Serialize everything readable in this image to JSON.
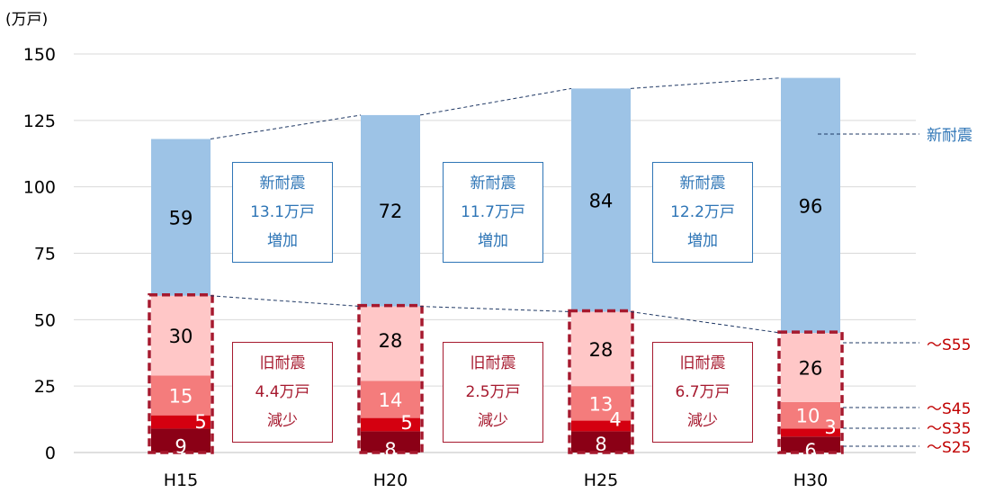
{
  "chart_data": {
    "type": "bar",
    "stacked": true,
    "unit_label": "(万戸)",
    "categories": [
      "H15",
      "H20",
      "H25",
      "H30"
    ],
    "ylim": [
      0,
      150
    ],
    "yticks": [
      0,
      25,
      50,
      75,
      100,
      125,
      150
    ],
    "grid": true,
    "series": [
      {
        "name": "～S25",
        "values": [
          9,
          8,
          8,
          6
        ],
        "color": "#8b0016",
        "label_color": "#ffffff"
      },
      {
        "name": "～S35",
        "values": [
          5,
          5,
          4,
          3
        ],
        "color": "#d40010",
        "label_color": "#ffffff"
      },
      {
        "name": "～S45",
        "values": [
          15,
          14,
          13,
          10
        ],
        "color": "#f47c7c",
        "label_color": "#ffffff"
      },
      {
        "name": "～S55",
        "values": [
          30,
          28,
          28,
          26
        ],
        "color": "#ffc7c7",
        "label_color": "#000000"
      },
      {
        "name": "新耐震",
        "values": [
          59,
          72,
          84,
          96
        ],
        "color": "#9dc3e6",
        "label_color": "#000000"
      }
    ],
    "annotations": [
      {
        "kind": "new",
        "color": "#2e75b6",
        "lines": [
          "新耐震",
          "13.1万戸",
          "増加"
        ]
      },
      {
        "kind": "old",
        "color": "#a6192e",
        "lines": [
          "旧耐震",
          "4.4万戸",
          "減少"
        ]
      },
      {
        "kind": "new",
        "color": "#2e75b6",
        "lines": [
          "新耐震",
          "11.7万戸",
          "増加"
        ]
      },
      {
        "kind": "old",
        "color": "#a6192e",
        "lines": [
          "旧耐震",
          "2.5万戸",
          "減少"
        ]
      },
      {
        "kind": "new",
        "color": "#2e75b6",
        "lines": [
          "新耐震",
          "12.2万戸",
          "増加"
        ]
      },
      {
        "kind": "old",
        "color": "#a6192e",
        "lines": [
          "旧耐震",
          "6.7万戸",
          "減少"
        ]
      }
    ],
    "legend_color_new": "#2e75b6",
    "legend_color_old": "#c00000",
    "old_group_border_color": "#a6192e"
  }
}
